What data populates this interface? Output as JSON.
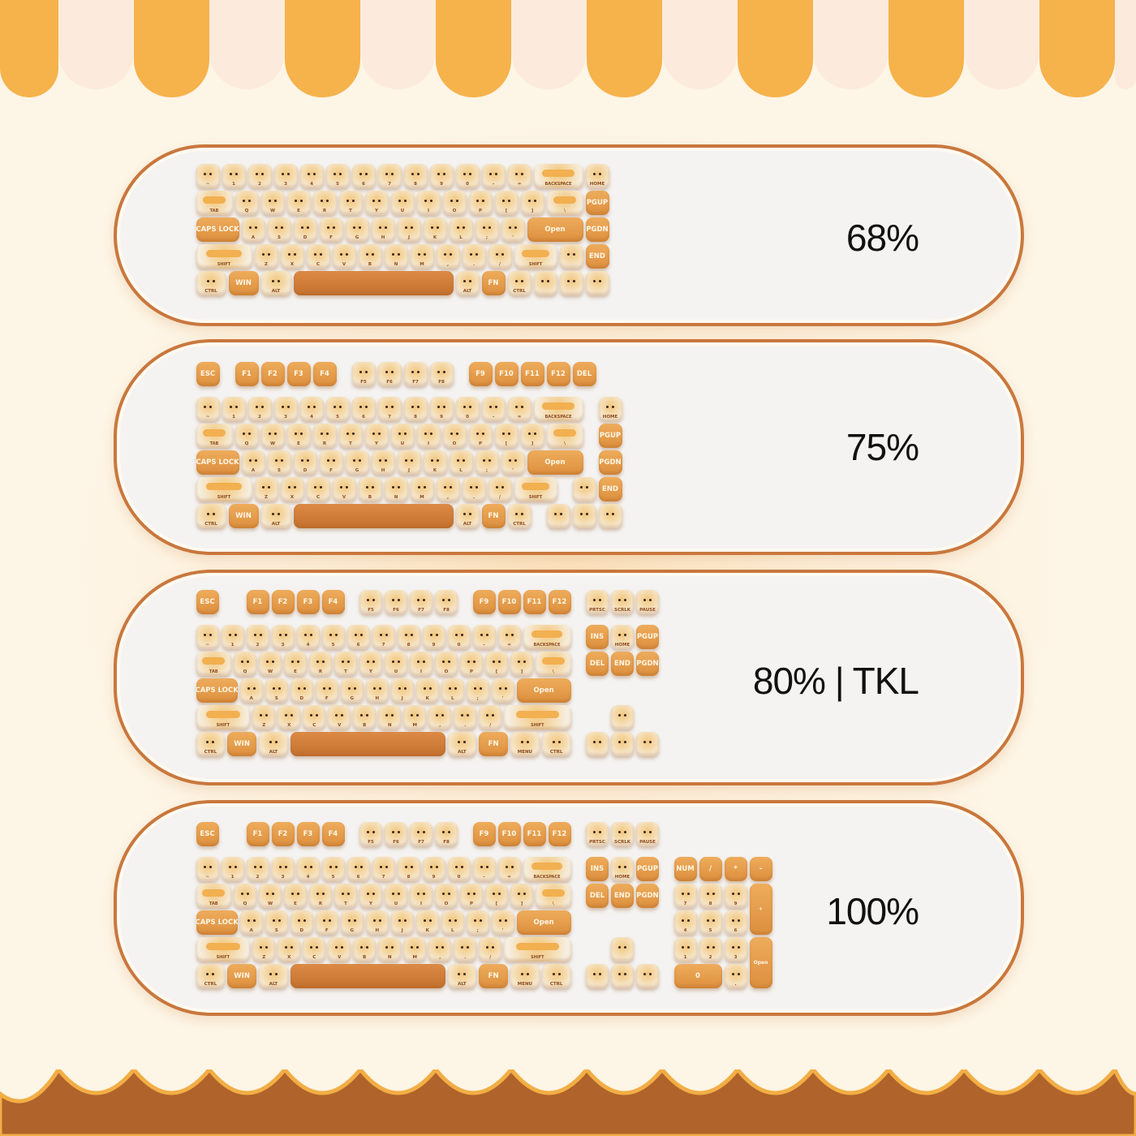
{
  "colors": {
    "awning_orange": "#f6b24b",
    "awning_cream": "#fcebdc",
    "panel_border": "#c9773d",
    "key_orange": "#e49c4c",
    "key_cream": "#f6eedf",
    "bottom_brown": "#b0632a"
  },
  "keyboards": [
    {
      "label": "68%",
      "rows": [
        [
          "~",
          "1",
          "2",
          "3",
          "4",
          "5",
          "6",
          "7",
          "8",
          "9",
          "0",
          "-",
          "=",
          "BACKSPACE",
          "HOME"
        ],
        [
          "TAB",
          "Q",
          "W",
          "E",
          "R",
          "T",
          "Y",
          "U",
          "I",
          "O",
          "P",
          "[",
          "]",
          "\\",
          "PGUP"
        ],
        [
          "CAPS LOCK",
          "A",
          "S",
          "D",
          "F",
          "G",
          "H",
          "J",
          "K",
          "L",
          ";",
          "'",
          "Open",
          "PGDN"
        ],
        [
          "SHIFT",
          "Z",
          "X",
          "C",
          "V",
          "B",
          "N",
          "M",
          ",",
          ".",
          "/",
          "SHIFT",
          "",
          "END"
        ],
        [
          "CTRL",
          "WIN",
          "ALT",
          "",
          "ALT",
          "FN",
          "CTRL",
          "",
          "",
          ""
        ]
      ]
    },
    {
      "label": "75%",
      "rows": [
        [
          "ESC",
          null,
          "F1",
          "F2",
          "F3",
          "F4",
          null,
          "F5",
          "F6",
          "F7",
          "F8",
          null,
          "F9",
          "F10",
          "F11",
          "F12",
          "DEL"
        ],
        [
          "~",
          "1",
          "2",
          "3",
          "4",
          "5",
          "6",
          "7",
          "8",
          "9",
          "0",
          "-",
          "=",
          "BACKSPACE",
          null,
          "HOME"
        ],
        [
          "TAB",
          "Q",
          "W",
          "E",
          "R",
          "T",
          "Y",
          "U",
          "I",
          "O",
          "P",
          "[",
          "]",
          "\\",
          null,
          "PGUP"
        ],
        [
          "CAPS LOCK",
          "A",
          "S",
          "D",
          "F",
          "G",
          "H",
          "J",
          "K",
          "L",
          ";",
          "'",
          "Open",
          null,
          "PGDN"
        ],
        [
          "SHIFT",
          "Z",
          "X",
          "C",
          "V",
          "B",
          "N",
          "M",
          ",",
          ".",
          "/",
          "SHIFT",
          null,
          "",
          "END"
        ],
        [
          "CTRL",
          "WIN",
          "ALT",
          "",
          "ALT",
          "FN",
          "CTRL",
          null,
          "",
          "",
          ""
        ]
      ]
    },
    {
      "label": "80% | TKL",
      "rows": [
        [
          "ESC",
          null,
          null,
          "F1",
          "F2",
          "F3",
          "F4",
          null,
          "F5",
          "F6",
          "F7",
          "F8",
          null,
          "F9",
          "F10",
          "F11",
          "F12",
          null,
          "PRTSC",
          "SCRLK",
          "PAUSE"
        ],
        [
          "~",
          "1",
          "2",
          "3",
          "4",
          "5",
          "6",
          "7",
          "8",
          "9",
          "0",
          "-",
          "=",
          "BACKSPACE",
          null,
          "INS",
          "HOME",
          "PGUP"
        ],
        [
          "TAB",
          "Q",
          "W",
          "E",
          "R",
          "T",
          "Y",
          "U",
          "I",
          "O",
          "P",
          "[",
          "]",
          "\\",
          null,
          "DEL",
          "END",
          "PGDN"
        ],
        [
          "CAPS LOCK",
          "A",
          "S",
          "D",
          "F",
          "G",
          "H",
          "J",
          "K",
          "L",
          ";",
          "'",
          "Open"
        ],
        [
          "SHIFT",
          "Z",
          "X",
          "C",
          "V",
          "B",
          "N",
          "M",
          ",",
          ".",
          "/",
          "SHIFT",
          null,
          null,
          null,
          ""
        ],
        [
          "CTRL",
          "WIN",
          "ALT",
          "",
          "ALT",
          "FN",
          "MENU",
          "CTRL",
          null,
          "",
          "",
          ""
        ]
      ]
    },
    {
      "label": "100%",
      "rows": [
        [
          "ESC",
          null,
          null,
          "F1",
          "F2",
          "F3",
          "F4",
          null,
          "F5",
          "F6",
          "F7",
          "F8",
          null,
          "F9",
          "F10",
          "F11",
          "F12",
          null,
          "PRTSC",
          "SCRLK",
          "PAUSE"
        ],
        [
          "~",
          "1",
          "2",
          "3",
          "4",
          "5",
          "6",
          "7",
          "8",
          "9",
          "0",
          "-",
          "=",
          "BACKSPACE",
          null,
          "INS",
          "HOME",
          "PGUP",
          null,
          "NUM",
          "/",
          "*",
          "-"
        ],
        [
          "TAB",
          "Q",
          "W",
          "E",
          "R",
          "T",
          "Y",
          "U",
          "I",
          "O",
          "P",
          "[",
          "]",
          "\\",
          null,
          "DEL",
          "END",
          "PGDN",
          null,
          "7",
          "8",
          "9",
          "+"
        ],
        [
          "CAPS LOCK",
          "A",
          "S",
          "D",
          "F",
          "G",
          "H",
          "J",
          "K",
          "L",
          ";",
          "'",
          "Open",
          null,
          null,
          null,
          null,
          null,
          null,
          null,
          null,
          "4",
          "5",
          "6"
        ],
        [
          "SHIFT",
          "Z",
          "X",
          "C",
          "V",
          "B",
          "N",
          "M",
          ",",
          ".",
          "/",
          "SHIFT",
          null,
          null,
          null,
          "",
          null,
          null,
          null,
          "1",
          "2",
          "3",
          "Open"
        ],
        [
          "CTRL",
          "WIN",
          "ALT",
          "",
          "ALT",
          "FN",
          "MENU",
          "CTRL",
          null,
          "",
          "",
          "",
          null,
          "0",
          "."
        ]
      ]
    }
  ]
}
